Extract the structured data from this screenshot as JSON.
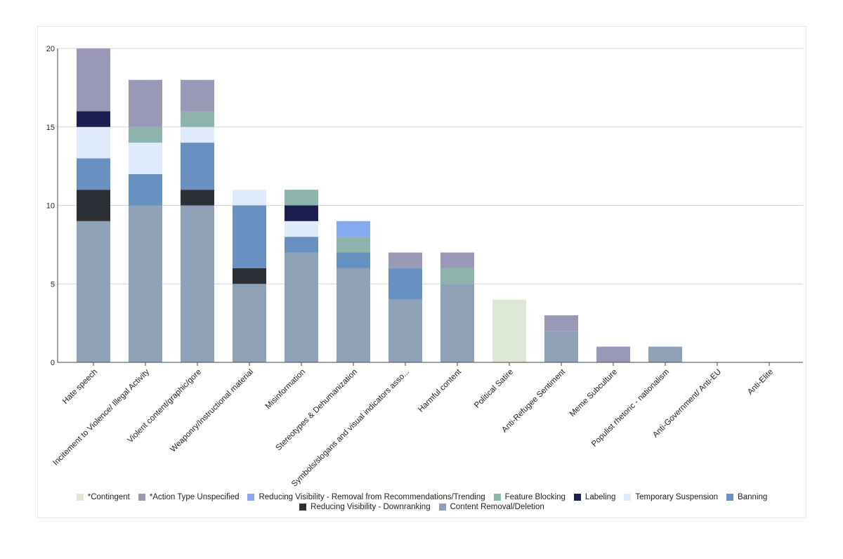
{
  "chart_data": {
    "type": "bar",
    "stacked": true,
    "ylim": [
      0,
      20
    ],
    "yticks": [
      0,
      5,
      10,
      15,
      20
    ],
    "grid": true,
    "legend_position": "bottom",
    "categories": [
      "Hate speech",
      "Incitement to Violence/ Illegal Activity",
      "Violent content/graphic/gore",
      "Weaponry/Instructional material",
      "Misinformation",
      "Stereotypes & Dehumanization",
      "Symbols/slogans and visual indicators asso...",
      "Harmful content",
      "Political Satire",
      "Anti-Refugee Sentiment",
      "Meme Subculture",
      "Populist rhetoric - nationalism",
      "Anti-Government/ Anti-EU",
      "Anti-Elite"
    ],
    "series": [
      {
        "name": "Content Removal/Deletion",
        "color": "#8fa1b7",
        "values": [
          9,
          10,
          10,
          5,
          7,
          6,
          4,
          5,
          0,
          2,
          0,
          1,
          0,
          0
        ]
      },
      {
        "name": "Reducing Visibility - Downranking",
        "color": "#2d3036",
        "values": [
          2,
          0,
          1,
          1,
          0,
          0,
          0,
          0,
          0,
          0,
          0,
          0,
          0,
          0
        ]
      },
      {
        "name": "Banning",
        "color": "#6890c1",
        "values": [
          2,
          2,
          3,
          4,
          1,
          1,
          2,
          0,
          0,
          0,
          0,
          0,
          0,
          0
        ]
      },
      {
        "name": "Temporary Suspension",
        "color": "#dfeafa",
        "values": [
          2,
          2,
          1,
          1,
          1,
          0,
          0,
          0,
          0,
          0,
          0,
          0,
          0,
          0
        ]
      },
      {
        "name": "Labeling",
        "color": "#1c1e52",
        "values": [
          1,
          0,
          0,
          0,
          1,
          0,
          0,
          0,
          0,
          0,
          0,
          0,
          0,
          0
        ]
      },
      {
        "name": "Feature Blocking",
        "color": "#8db3ad",
        "values": [
          0,
          1,
          1,
          0,
          1,
          1,
          0,
          1,
          0,
          0,
          0,
          0,
          0,
          0
        ]
      },
      {
        "name": "Reducing Visibility - Removal from Recommendations/Trending",
        "color": "#87a9ef",
        "values": [
          0,
          0,
          0,
          0,
          0,
          1,
          0,
          0,
          0,
          0,
          0,
          0,
          0,
          0
        ]
      },
      {
        "name": "*Action Type Unspecified",
        "color": "#9a98b7",
        "values": [
          4,
          3,
          2,
          0,
          0,
          0,
          1,
          1,
          0,
          1,
          1,
          0,
          0,
          0
        ]
      },
      {
        "name": "*Contingent",
        "color": "#dde9d6",
        "values": [
          0,
          0,
          0,
          0,
          0,
          0,
          0,
          0,
          4,
          0,
          0,
          0,
          0,
          0
        ]
      }
    ],
    "legend_order": [
      "*Contingent",
      "*Action Type Unspecified",
      "Reducing Visibility - Removal from Recommendations/Trending",
      "Feature Blocking",
      "Labeling",
      "Temporary Suspension",
      "Banning",
      "Reducing Visibility - Downranking",
      "Content Removal/Deletion"
    ],
    "title": "",
    "xlabel": "",
    "ylabel": ""
  }
}
